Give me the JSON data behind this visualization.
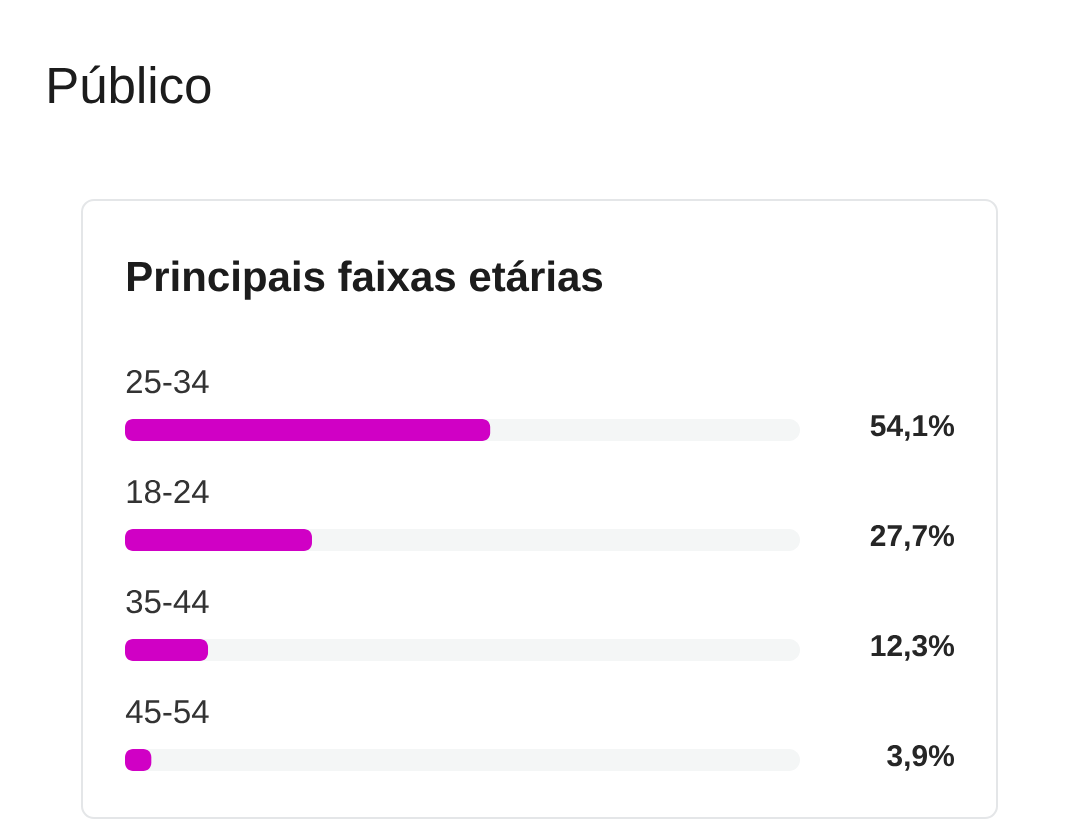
{
  "chart_data": {
    "type": "bar",
    "orientation": "horizontal",
    "title": "Público",
    "subtitle": "Principais faixas etárias",
    "categories": [
      "25-34",
      "18-24",
      "35-44",
      "45-54"
    ],
    "values": [
      54.1,
      27.7,
      12.3,
      3.9
    ],
    "value_labels": [
      "54,1%",
      "27,7%",
      "12,3%",
      "3,9%"
    ],
    "color": "#d000c5",
    "xlim": [
      0,
      100
    ],
    "tick_labels": "y"
  }
}
